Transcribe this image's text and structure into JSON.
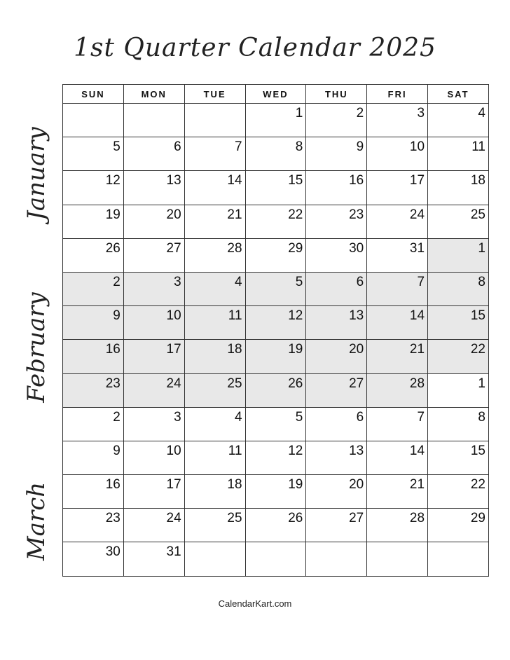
{
  "title": "1st Quarter Calendar 2025",
  "months": [
    "January",
    "February",
    "March"
  ],
  "weekdays": [
    "SUN",
    "MON",
    "TUE",
    "WED",
    "THU",
    "FRI",
    "SAT"
  ],
  "shade_color": "#e8e8e8",
  "weeks": [
    [
      {
        "d": "",
        "m": ""
      },
      {
        "d": "",
        "m": ""
      },
      {
        "d": "",
        "m": ""
      },
      {
        "d": "1",
        "m": "jan"
      },
      {
        "d": "2",
        "m": "jan"
      },
      {
        "d": "3",
        "m": "jan"
      },
      {
        "d": "4",
        "m": "jan"
      }
    ],
    [
      {
        "d": "5",
        "m": "jan"
      },
      {
        "d": "6",
        "m": "jan"
      },
      {
        "d": "7",
        "m": "jan"
      },
      {
        "d": "8",
        "m": "jan"
      },
      {
        "d": "9",
        "m": "jan"
      },
      {
        "d": "10",
        "m": "jan"
      },
      {
        "d": "11",
        "m": "jan"
      }
    ],
    [
      {
        "d": "12",
        "m": "jan"
      },
      {
        "d": "13",
        "m": "jan"
      },
      {
        "d": "14",
        "m": "jan"
      },
      {
        "d": "15",
        "m": "jan"
      },
      {
        "d": "16",
        "m": "jan"
      },
      {
        "d": "17",
        "m": "jan"
      },
      {
        "d": "18",
        "m": "jan"
      }
    ],
    [
      {
        "d": "19",
        "m": "jan"
      },
      {
        "d": "20",
        "m": "jan"
      },
      {
        "d": "21",
        "m": "jan"
      },
      {
        "d": "22",
        "m": "jan"
      },
      {
        "d": "23",
        "m": "jan"
      },
      {
        "d": "24",
        "m": "jan"
      },
      {
        "d": "25",
        "m": "jan"
      }
    ],
    [
      {
        "d": "26",
        "m": "jan"
      },
      {
        "d": "27",
        "m": "jan"
      },
      {
        "d": "28",
        "m": "jan"
      },
      {
        "d": "29",
        "m": "jan"
      },
      {
        "d": "30",
        "m": "jan"
      },
      {
        "d": "31",
        "m": "jan"
      },
      {
        "d": "1",
        "m": "feb"
      }
    ],
    [
      {
        "d": "2",
        "m": "feb"
      },
      {
        "d": "3",
        "m": "feb"
      },
      {
        "d": "4",
        "m": "feb"
      },
      {
        "d": "5",
        "m": "feb"
      },
      {
        "d": "6",
        "m": "feb"
      },
      {
        "d": "7",
        "m": "feb"
      },
      {
        "d": "8",
        "m": "feb"
      }
    ],
    [
      {
        "d": "9",
        "m": "feb"
      },
      {
        "d": "10",
        "m": "feb"
      },
      {
        "d": "11",
        "m": "feb"
      },
      {
        "d": "12",
        "m": "feb"
      },
      {
        "d": "13",
        "m": "feb"
      },
      {
        "d": "14",
        "m": "feb"
      },
      {
        "d": "15",
        "m": "feb"
      }
    ],
    [
      {
        "d": "16",
        "m": "feb"
      },
      {
        "d": "17",
        "m": "feb"
      },
      {
        "d": "18",
        "m": "feb"
      },
      {
        "d": "19",
        "m": "feb"
      },
      {
        "d": "20",
        "m": "feb"
      },
      {
        "d": "21",
        "m": "feb"
      },
      {
        "d": "22",
        "m": "feb"
      }
    ],
    [
      {
        "d": "23",
        "m": "feb"
      },
      {
        "d": "24",
        "m": "feb"
      },
      {
        "d": "25",
        "m": "feb"
      },
      {
        "d": "26",
        "m": "feb"
      },
      {
        "d": "27",
        "m": "feb"
      },
      {
        "d": "28",
        "m": "feb"
      },
      {
        "d": "1",
        "m": "mar"
      }
    ],
    [
      {
        "d": "2",
        "m": "mar"
      },
      {
        "d": "3",
        "m": "mar"
      },
      {
        "d": "4",
        "m": "mar"
      },
      {
        "d": "5",
        "m": "mar"
      },
      {
        "d": "6",
        "m": "mar"
      },
      {
        "d": "7",
        "m": "mar"
      },
      {
        "d": "8",
        "m": "mar"
      }
    ],
    [
      {
        "d": "9",
        "m": "mar"
      },
      {
        "d": "10",
        "m": "mar"
      },
      {
        "d": "11",
        "m": "mar"
      },
      {
        "d": "12",
        "m": "mar"
      },
      {
        "d": "13",
        "m": "mar"
      },
      {
        "d": "14",
        "m": "mar"
      },
      {
        "d": "15",
        "m": "mar"
      }
    ],
    [
      {
        "d": "16",
        "m": "mar"
      },
      {
        "d": "17",
        "m": "mar"
      },
      {
        "d": "18",
        "m": "mar"
      },
      {
        "d": "19",
        "m": "mar"
      },
      {
        "d": "20",
        "m": "mar"
      },
      {
        "d": "21",
        "m": "mar"
      },
      {
        "d": "22",
        "m": "mar"
      }
    ],
    [
      {
        "d": "23",
        "m": "mar"
      },
      {
        "d": "24",
        "m": "mar"
      },
      {
        "d": "25",
        "m": "mar"
      },
      {
        "d": "26",
        "m": "mar"
      },
      {
        "d": "27",
        "m": "mar"
      },
      {
        "d": "28",
        "m": "mar"
      },
      {
        "d": "29",
        "m": "mar"
      }
    ],
    [
      {
        "d": "30",
        "m": "mar"
      },
      {
        "d": "31",
        "m": "mar"
      },
      {
        "d": "",
        "m": ""
      },
      {
        "d": "",
        "m": ""
      },
      {
        "d": "",
        "m": ""
      },
      {
        "d": "",
        "m": ""
      },
      {
        "d": "",
        "m": ""
      }
    ]
  ],
  "footer": "CalendarKart.com"
}
